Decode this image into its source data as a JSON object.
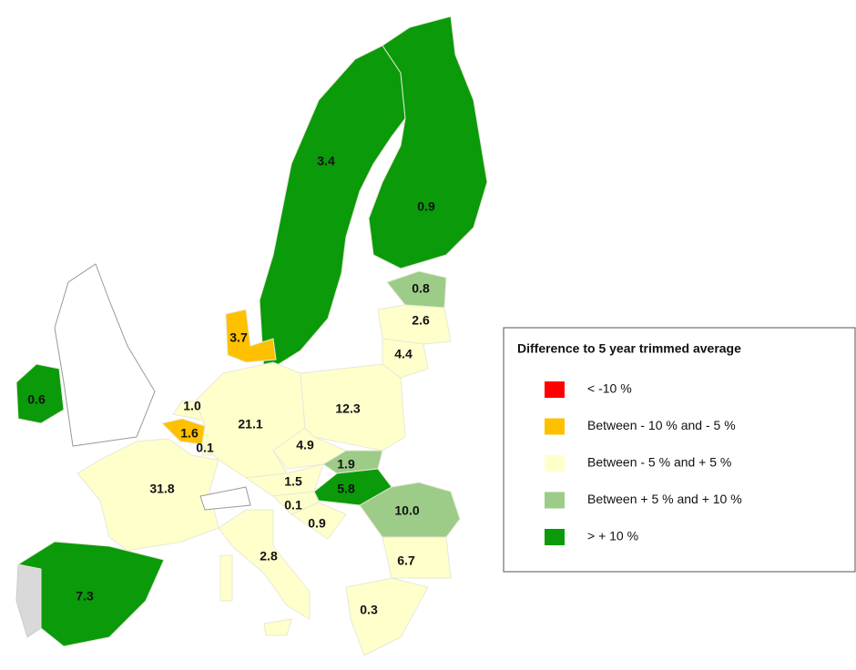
{
  "map": {
    "regions": [
      {
        "label": "3.4",
        "color": "#0a9a0a"
      },
      {
        "label": "0.9",
        "color": "#0a9a0a"
      },
      {
        "label": "0.8",
        "color": "#9ccc88"
      },
      {
        "label": "2.6",
        "color": "#ffffcc"
      },
      {
        "label": "4.4",
        "color": "#ffffcc"
      },
      {
        "label": "3.7",
        "color": "#ffc000"
      },
      {
        "label": "0.6",
        "color": "#0a9a0a"
      },
      {
        "label": "1.0",
        "color": "#ffffcc"
      },
      {
        "label": "1.6",
        "color": "#ffc000"
      },
      {
        "label": "0.1",
        "color": "#ffffcc"
      },
      {
        "label": "21.1",
        "color": "#ffffcc"
      },
      {
        "label": "12.3",
        "color": "#ffffcc"
      },
      {
        "label": "4.9",
        "color": "#ffffcc"
      },
      {
        "label": "1.9",
        "color": "#9ccc88"
      },
      {
        "label": "5.8",
        "color": "#0a9a0a"
      },
      {
        "label": "1.5",
        "color": "#ffffcc"
      },
      {
        "label": "0.1",
        "color": "#ffffcc"
      },
      {
        "label": "0.9",
        "color": "#ffffcc"
      },
      {
        "label": "10.0",
        "color": "#9ccc88"
      },
      {
        "label": "6.7",
        "color": "#ffffcc"
      },
      {
        "label": "31.8",
        "color": "#ffffcc"
      },
      {
        "label": "2.8",
        "color": "#ffffcc"
      },
      {
        "label": "7.3",
        "color": "#0a9a0a"
      },
      {
        "label": "0.3",
        "color": "#ffffcc"
      }
    ],
    "legend": {
      "title": "Difference to 5 year trimmed average",
      "items": [
        {
          "label": "< -10 %",
          "color": "#ff0000"
        },
        {
          "label": "Between - 10 % and - 5 %",
          "color": "#ffc000"
        },
        {
          "label": "Between - 5 % and + 5 %",
          "color": "#ffffcc"
        },
        {
          "label": "Between + 5 % and + 10 %",
          "color": "#9ccc88"
        },
        {
          "label": "> + 10 %",
          "color": "#0a9a0a"
        }
      ]
    }
  }
}
